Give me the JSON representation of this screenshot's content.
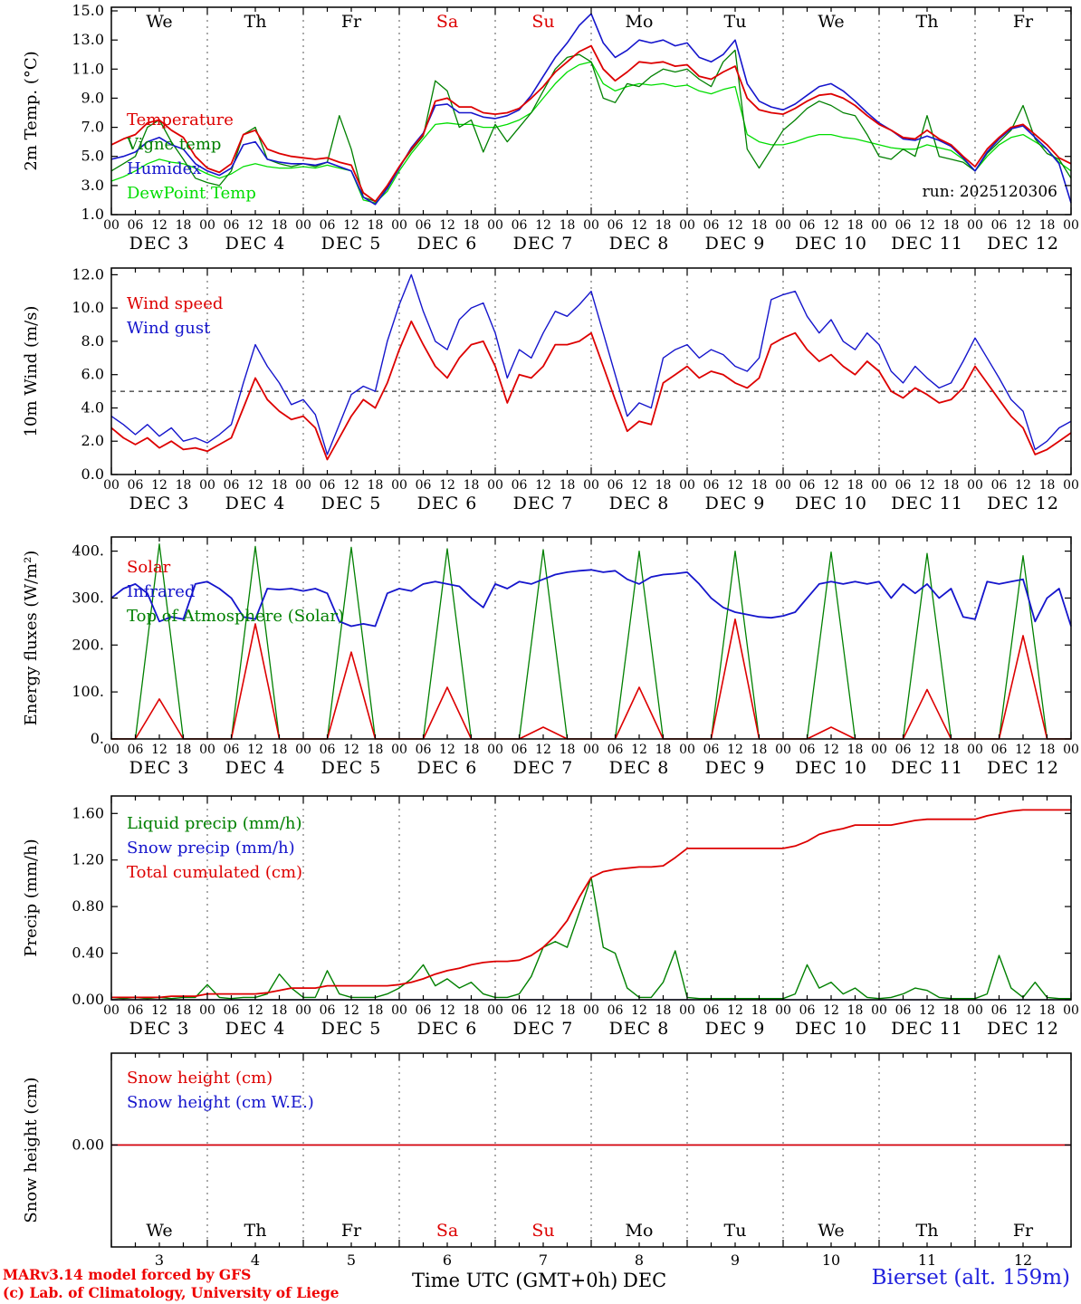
{
  "run_label": "run: 2025120306",
  "footer": {
    "model_line1": "MARv3.14 model forced by GFS",
    "model_line2": "(c) Lab. of Climatology, University of Liege",
    "time_axis_label": "Time UTC (GMT+0h)",
    "month_label": "DEC",
    "station": "Bierset (alt. 159m)"
  },
  "colors": {
    "red": "#dd0000",
    "blue": "#1515cc",
    "green_dark": "#008000",
    "green_bright": "#00dd00"
  },
  "time_axis": {
    "total_hours": 240,
    "step_hours": 3,
    "tick_every": 6,
    "tick_cycle": [
      "00",
      "06",
      "12",
      "18"
    ],
    "day_labels": [
      "DEC 3",
      "DEC 4",
      "DEC 5",
      "DEC 6",
      "DEC 7",
      "DEC 8",
      "DEC 9",
      "DEC 10",
      "DEC 11",
      "DEC 12"
    ],
    "weekdays": [
      "We",
      "Th",
      "Fr",
      "Sa",
      "Su",
      "Mo",
      "Tu",
      "We",
      "Th",
      "Fr"
    ],
    "weekend_indices": [
      3,
      4
    ],
    "day_numbers": [
      "3",
      "4",
      "5",
      "6",
      "7",
      "8",
      "9",
      "10",
      "11",
      "12"
    ]
  },
  "chart_data": [
    {
      "type": "line",
      "name": "temperature-panel",
      "ylabel": "2m Temp. (°C)",
      "ylim": [
        1,
        15.25
      ],
      "yticks": [
        1,
        3,
        5,
        7,
        9,
        11,
        13,
        15
      ],
      "ytick_format": "f1",
      "show_top_weekdays": true,
      "show_bottom_weekdays": false,
      "hline": null,
      "legend": [
        {
          "label": "Temperature",
          "color": "red"
        },
        {
          "label": "Vigne temp",
          "color": "green_dark"
        },
        {
          "label": "Humidex",
          "color": "blue"
        },
        {
          "label": "DewPoint Temp",
          "color": "green_bright"
        }
      ],
      "series": [
        {
          "name": "dewpoint-temp",
          "color": "green_bright",
          "width": 1.3,
          "values": [
            3.3,
            3.6,
            4.0,
            4.5,
            4.8,
            4.6,
            4.5,
            4.2,
            3.8,
            3.5,
            3.8,
            4.3,
            4.5,
            4.3,
            4.2,
            4.2,
            4.3,
            4.2,
            4.4,
            4.2,
            4.0,
            2.0,
            1.8,
            2.6,
            4.0,
            5.2,
            6.2,
            7.2,
            7.3,
            7.2,
            7.2,
            7.0,
            7.0,
            7.2,
            7.5,
            8.0,
            9.0,
            10.0,
            10.8,
            11.3,
            11.5,
            10.0,
            9.5,
            9.8,
            10.0,
            9.9,
            10.0,
            9.8,
            9.9,
            9.5,
            9.3,
            9.6,
            9.8,
            6.5,
            6.0,
            5.8,
            5.8,
            6.0,
            6.3,
            6.5,
            6.5,
            6.3,
            6.2,
            6.0,
            5.8,
            5.6,
            5.5,
            5.5,
            5.8,
            5.6,
            5.4,
            4.8,
            4.0,
            5.0,
            5.8,
            6.3,
            6.5,
            6.0,
            5.5,
            4.6,
            4.0
          ]
        },
        {
          "name": "vigne-temp",
          "color": "green_dark",
          "width": 1.3,
          "values": [
            4.0,
            4.5,
            5.0,
            7.0,
            7.5,
            6.0,
            4.8,
            3.5,
            3.2,
            3.0,
            4.0,
            6.5,
            7.0,
            4.8,
            4.5,
            4.3,
            4.5,
            4.3,
            4.6,
            7.8,
            5.5,
            2.2,
            1.9,
            2.9,
            4.3,
            5.4,
            6.4,
            10.2,
            9.5,
            7.0,
            7.5,
            5.3,
            7.2,
            6.0,
            7.0,
            8.0,
            9.5,
            11.0,
            11.8,
            12.0,
            11.5,
            9.0,
            8.7,
            10.0,
            9.8,
            10.5,
            11.0,
            10.8,
            11.0,
            10.3,
            9.8,
            11.5,
            12.3,
            5.5,
            4.2,
            5.5,
            6.8,
            7.5,
            8.3,
            8.8,
            8.5,
            8.0,
            7.8,
            6.5,
            5.0,
            4.8,
            5.5,
            5.0,
            7.8,
            5.0,
            4.8,
            4.6,
            4.0,
            5.2,
            6.0,
            6.8,
            8.5,
            6.2,
            5.2,
            4.8,
            3.5
          ]
        },
        {
          "name": "humidex",
          "color": "blue",
          "width": 1.6,
          "values": [
            4.8,
            5.0,
            5.3,
            6.0,
            6.3,
            5.8,
            5.5,
            4.5,
            4.0,
            3.7,
            4.2,
            5.8,
            6.0,
            4.8,
            4.6,
            4.5,
            4.5,
            4.4,
            4.6,
            4.3,
            4.0,
            2.2,
            1.7,
            2.8,
            4.2,
            5.6,
            6.6,
            8.5,
            8.6,
            8.0,
            8.0,
            7.7,
            7.6,
            7.8,
            8.2,
            9.2,
            10.5,
            11.8,
            12.8,
            14.0,
            14.8,
            12.8,
            11.8,
            12.3,
            13.0,
            12.8,
            13.0,
            12.6,
            12.8,
            11.8,
            11.5,
            12.0,
            13.0,
            10.0,
            8.8,
            8.4,
            8.2,
            8.6,
            9.2,
            9.8,
            10.0,
            9.5,
            8.8,
            8.0,
            7.3,
            6.8,
            6.2,
            6.1,
            6.4,
            6.1,
            5.7,
            4.9,
            4.0,
            5.3,
            6.2,
            6.9,
            7.1,
            6.3,
            5.5,
            4.5,
            1.8
          ]
        },
        {
          "name": "temperature",
          "color": "red",
          "width": 1.8,
          "values": [
            5.8,
            6.2,
            6.5,
            7.3,
            7.5,
            6.8,
            6.3,
            5.0,
            4.2,
            3.9,
            4.5,
            6.5,
            6.8,
            5.5,
            5.2,
            5.0,
            4.9,
            4.8,
            4.9,
            4.6,
            4.4,
            2.5,
            1.9,
            3.0,
            4.3,
            5.5,
            6.5,
            8.8,
            9.0,
            8.4,
            8.4,
            8.0,
            7.9,
            8.0,
            8.3,
            9.0,
            9.8,
            10.8,
            11.5,
            12.2,
            12.6,
            11.0,
            10.2,
            10.8,
            11.5,
            11.4,
            11.5,
            11.2,
            11.3,
            10.5,
            10.3,
            10.8,
            11.2,
            9.0,
            8.2,
            8.0,
            7.9,
            8.3,
            8.8,
            9.2,
            9.3,
            9.0,
            8.5,
            7.8,
            7.2,
            6.8,
            6.3,
            6.2,
            6.8,
            6.2,
            5.8,
            5.0,
            4.3,
            5.5,
            6.3,
            7.0,
            7.2,
            6.5,
            5.8,
            4.9,
            4.5
          ]
        }
      ]
    },
    {
      "type": "line",
      "name": "wind-panel",
      "ylabel": "10m Wind (m/s)",
      "ylim": [
        0,
        12.4
      ],
      "yticks": [
        0,
        2,
        4,
        6,
        8,
        10,
        12
      ],
      "ytick_format": "f1",
      "show_top_weekdays": false,
      "show_bottom_weekdays": false,
      "hline": 5.0,
      "legend": [
        {
          "label": "Wind speed",
          "color": "red"
        },
        {
          "label": "Wind gust",
          "color": "blue"
        }
      ],
      "series": [
        {
          "name": "wind-gust",
          "color": "blue",
          "width": 1.4,
          "values": [
            3.5,
            3.0,
            2.4,
            3.0,
            2.3,
            2.8,
            2.0,
            2.2,
            1.9,
            2.4,
            3.0,
            5.5,
            7.8,
            6.5,
            5.5,
            4.2,
            4.5,
            3.6,
            1.2,
            3.0,
            4.8,
            5.3,
            5.0,
            8.0,
            10.2,
            12.0,
            9.8,
            8.0,
            7.5,
            9.3,
            10.0,
            10.3,
            8.5,
            5.8,
            7.5,
            7.0,
            8.5,
            9.8,
            9.5,
            10.2,
            11.0,
            8.5,
            6.0,
            3.5,
            4.3,
            4.0,
            7.0,
            7.5,
            7.8,
            7.0,
            7.5,
            7.2,
            6.5,
            6.2,
            7.0,
            10.5,
            10.8,
            11.0,
            9.5,
            8.5,
            9.3,
            8.0,
            7.5,
            8.5,
            7.8,
            6.2,
            5.5,
            6.5,
            5.8,
            5.2,
            5.5,
            6.8,
            8.2,
            7.0,
            5.8,
            4.5,
            3.8,
            1.5,
            2.0,
            2.8,
            3.2
          ]
        },
        {
          "name": "wind-speed",
          "color": "red",
          "width": 1.8,
          "values": [
            2.8,
            2.2,
            1.8,
            2.2,
            1.6,
            2.0,
            1.5,
            1.6,
            1.4,
            1.8,
            2.2,
            4.0,
            5.8,
            4.5,
            3.8,
            3.3,
            3.5,
            2.8,
            0.9,
            2.2,
            3.5,
            4.5,
            4.0,
            5.5,
            7.5,
            9.2,
            7.8,
            6.5,
            5.8,
            7.0,
            7.8,
            8.0,
            6.5,
            4.3,
            6.0,
            5.8,
            6.5,
            7.8,
            7.8,
            8.0,
            8.5,
            6.5,
            4.5,
            2.6,
            3.2,
            3.0,
            5.5,
            6.0,
            6.5,
            5.8,
            6.2,
            6.0,
            5.5,
            5.2,
            5.8,
            7.8,
            8.2,
            8.5,
            7.5,
            6.8,
            7.2,
            6.5,
            6.0,
            6.8,
            6.2,
            5.0,
            4.6,
            5.2,
            4.8,
            4.3,
            4.5,
            5.2,
            6.5,
            5.5,
            4.5,
            3.5,
            2.8,
            1.2,
            1.5,
            2.0,
            2.5
          ]
        }
      ]
    },
    {
      "type": "line",
      "name": "energy-panel",
      "ylabel": "Energy fluxes (W/m²)",
      "ylim": [
        0,
        430
      ],
      "yticks": [
        0,
        100,
        200,
        300,
        400
      ],
      "ytick_format": "idot",
      "show_top_weekdays": false,
      "show_bottom_weekdays": false,
      "hline": null,
      "legend": [
        {
          "label": "Solar",
          "color": "red"
        },
        {
          "label": "Infrared",
          "color": "blue"
        },
        {
          "label": "Top of Atmosphere (Solar)",
          "color": "green_dark"
        }
      ],
      "series": [
        {
          "name": "toa-solar",
          "color": "green_dark",
          "width": 1.3,
          "type": "bell",
          "day_peaks": [
            415,
            410,
            408,
            405,
            403,
            400,
            400,
            398,
            395,
            390
          ]
        },
        {
          "name": "solar",
          "color": "red",
          "width": 1.6,
          "type": "bell",
          "day_peaks": [
            85,
            245,
            185,
            110,
            25,
            110,
            255,
            25,
            105,
            220
          ]
        },
        {
          "name": "infrared",
          "color": "blue",
          "width": 1.8,
          "values": [
            300,
            320,
            330,
            310,
            250,
            260,
            255,
            330,
            335,
            320,
            300,
            260,
            255,
            320,
            318,
            320,
            315,
            320,
            310,
            250,
            240,
            245,
            240,
            310,
            320,
            315,
            330,
            335,
            330,
            325,
            300,
            280,
            330,
            320,
            335,
            330,
            340,
            350,
            355,
            358,
            360,
            355,
            358,
            340,
            330,
            345,
            350,
            352,
            355,
            330,
            300,
            280,
            270,
            265,
            260,
            258,
            262,
            270,
            300,
            330,
            335,
            330,
            335,
            330,
            335,
            300,
            330,
            310,
            330,
            300,
            320,
            260,
            255,
            335,
            330,
            335,
            340,
            250,
            300,
            320,
            240
          ]
        }
      ]
    },
    {
      "type": "line",
      "name": "precip-panel",
      "ylabel": "Precip (mm/h)",
      "ylim": [
        0,
        1.75
      ],
      "yticks": [
        0,
        0.4,
        0.8,
        1.2,
        1.6
      ],
      "ytick_format": "f2",
      "show_top_weekdays": false,
      "show_bottom_weekdays": false,
      "hline": null,
      "legend": [
        {
          "label": "Liquid precip (mm/h)",
          "color": "green_dark"
        },
        {
          "label": "Snow precip (mm/h)",
          "color": "blue"
        },
        {
          "label": "Total cumulated (cm)",
          "color": "red"
        }
      ],
      "series": [
        {
          "name": "snow-precip",
          "color": "blue",
          "width": 1.3,
          "type": "const",
          "value": 0
        },
        {
          "name": "liquid-precip",
          "color": "green_dark",
          "width": 1.4,
          "values": [
            0.02,
            0.01,
            0.02,
            0.01,
            0.02,
            0.01,
            0.02,
            0.02,
            0.13,
            0.02,
            0.01,
            0.02,
            0.02,
            0.05,
            0.22,
            0.1,
            0.02,
            0.02,
            0.25,
            0.05,
            0.02,
            0.02,
            0.02,
            0.05,
            0.1,
            0.18,
            0.3,
            0.12,
            0.18,
            0.1,
            0.15,
            0.05,
            0.02,
            0.02,
            0.05,
            0.2,
            0.45,
            0.5,
            0.45,
            0.75,
            1.05,
            0.45,
            0.4,
            0.1,
            0.02,
            0.02,
            0.15,
            0.42,
            0.02,
            0.01,
            0.01,
            0.01,
            0.01,
            0.01,
            0.01,
            0.01,
            0.01,
            0.05,
            0.3,
            0.1,
            0.15,
            0.05,
            0.1,
            0.02,
            0.01,
            0.02,
            0.05,
            0.1,
            0.08,
            0.02,
            0.01,
            0.01,
            0.01,
            0.05,
            0.38,
            0.1,
            0.02,
            0.15,
            0.02,
            0.01,
            0.01
          ]
        },
        {
          "name": "total-cumulated",
          "color": "red",
          "width": 1.8,
          "values": [
            0.02,
            0.02,
            0.02,
            0.02,
            0.02,
            0.03,
            0.03,
            0.03,
            0.05,
            0.05,
            0.05,
            0.05,
            0.05,
            0.06,
            0.08,
            0.1,
            0.1,
            0.1,
            0.12,
            0.12,
            0.12,
            0.12,
            0.12,
            0.12,
            0.13,
            0.15,
            0.18,
            0.22,
            0.25,
            0.27,
            0.3,
            0.32,
            0.33,
            0.33,
            0.34,
            0.38,
            0.45,
            0.55,
            0.68,
            0.88,
            1.05,
            1.1,
            1.12,
            1.13,
            1.14,
            1.14,
            1.15,
            1.22,
            1.3,
            1.3,
            1.3,
            1.3,
            1.3,
            1.3,
            1.3,
            1.3,
            1.3,
            1.32,
            1.36,
            1.42,
            1.45,
            1.47,
            1.5,
            1.5,
            1.5,
            1.5,
            1.52,
            1.54,
            1.55,
            1.55,
            1.55,
            1.55,
            1.55,
            1.58,
            1.6,
            1.62,
            1.63,
            1.63,
            1.63,
            1.63,
            1.63
          ]
        }
      ]
    },
    {
      "type": "line",
      "name": "snow-panel",
      "ylabel": "Snow height (cm)",
      "ylim": [
        -1,
        0.9
      ],
      "yticks": [
        0
      ],
      "ytick_format": "f2",
      "show_top_weekdays": false,
      "show_bottom_weekdays": true,
      "hline": null,
      "legend": [
        {
          "label": "Snow height (cm)",
          "color": "red"
        },
        {
          "label": "Snow height (cm W.E.)",
          "color": "blue"
        }
      ],
      "series": [
        {
          "name": "snow-height-we",
          "color": "blue",
          "width": 1.4,
          "type": "const",
          "value": 0
        },
        {
          "name": "snow-height",
          "color": "red",
          "width": 1.6,
          "type": "const",
          "value": 0
        }
      ]
    }
  ]
}
